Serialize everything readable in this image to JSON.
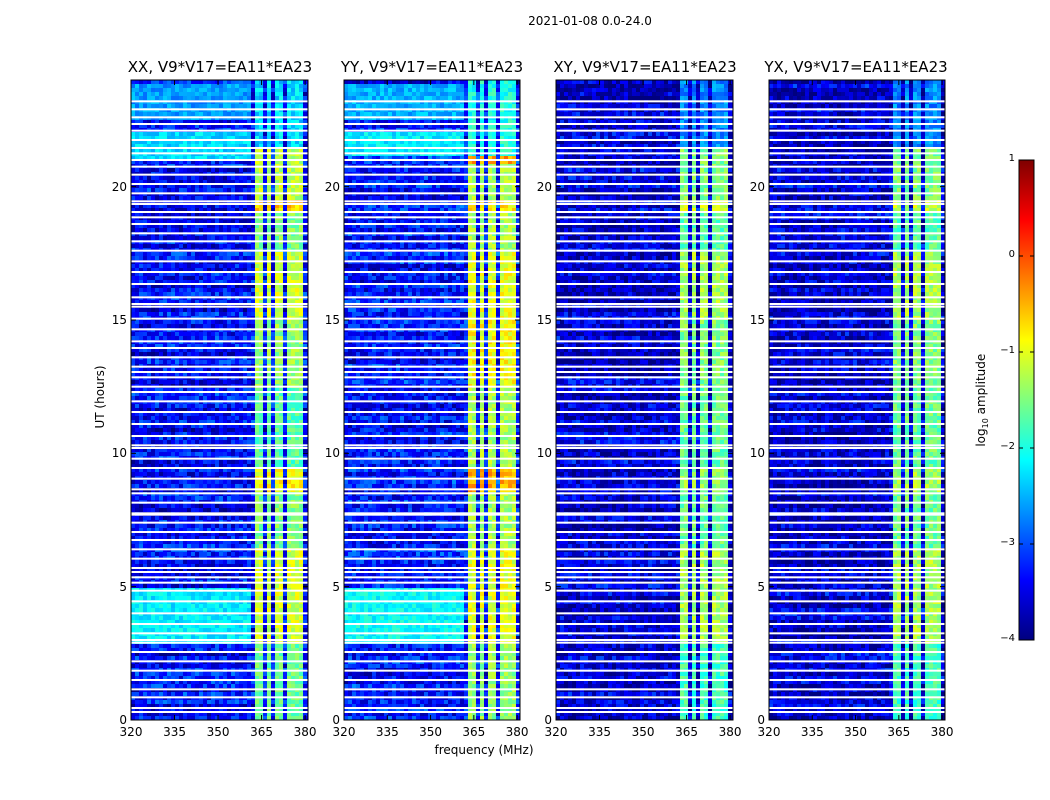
{
  "chart_data": {
    "type": "heatmap",
    "suptitle": "2021-01-08 0.0-24.0",
    "xlabel": "frequency (MHz)",
    "ylabel": "UT (hours)",
    "xlim": [
      320,
      381
    ],
    "ylim": [
      0,
      24
    ],
    "xticks": [
      "320",
      "335",
      "350",
      "365",
      "380"
    ],
    "yticks": [
      "0",
      "5",
      "10",
      "15",
      "20"
    ],
    "colorbar": {
      "label_prefix": "log",
      "label_sub": "10",
      "label_suffix": " amplitude",
      "range": [
        -4,
        1
      ],
      "ticks": [
        "1",
        "0",
        "−1",
        "−2",
        "−3",
        "−4"
      ],
      "colormap": "jet",
      "colors": [
        "#00007f",
        "#0000ff",
        "#007fff",
        "#00ffff",
        "#7fff7f",
        "#ffff00",
        "#ff7f00",
        "#ff0000",
        "#7f0000"
      ]
    },
    "flagged_hours": [
      0.3,
      0.45,
      0.85,
      1.15,
      1.5,
      1.85,
      2.2,
      2.55,
      2.9,
      3.0,
      3.25,
      3.6,
      4.0,
      4.45,
      4.85,
      5.15,
      5.35,
      5.55,
      5.7,
      6.05,
      6.4,
      6.75,
      7.05,
      7.4,
      7.7,
      7.75,
      8.15,
      8.5,
      8.65,
      9.05,
      9.45,
      9.8,
      10.2,
      10.3,
      10.65,
      11.1,
      11.55,
      11.95,
      12.3,
      12.5,
      12.85,
      13.05,
      13.25,
      13.6,
      13.95,
      14.2,
      14.65,
      15.05,
      15.5,
      15.6,
      15.85,
      16.35,
      16.8,
      17.2,
      17.6,
      17.95,
      18.25,
      18.6,
      18.85,
      19.05,
      19.35,
      19.45,
      19.75,
      20.1,
      20.45,
      20.75,
      21.0,
      21.25,
      21.45,
      21.75,
      22.1,
      22.35,
      22.6,
      22.9,
      23.2
    ],
    "rfi_band_mhz": [
      [
        362.5,
        365.5
      ],
      [
        366.5,
        369.0
      ],
      [
        370.0,
        373.0
      ],
      [
        374.0,
        376.5
      ],
      [
        377.5,
        380.0
      ]
    ],
    "panels": [
      {
        "title": "XX, V9*V17=EA11*EA23",
        "median_log_amp": -3.4,
        "rfi_log_amp": [
          [
            0,
            2.8,
            -1.6
          ],
          [
            2.8,
            6.5,
            -1.1
          ],
          [
            6.5,
            8.5,
            -1.5
          ],
          [
            8.5,
            9.5,
            -0.9
          ],
          [
            9.5,
            12.5,
            -1.7
          ],
          [
            12.5,
            15,
            -1.4
          ],
          [
            15,
            17.5,
            -1.1
          ],
          [
            17.5,
            19,
            -1.5
          ],
          [
            19,
            19.5,
            -0.6
          ],
          [
            19.5,
            21.5,
            -1.2
          ],
          [
            21.5,
            24,
            -2.3
          ]
        ],
        "broadband_log_amp": [
          [
            2.8,
            5,
            -2.2
          ],
          [
            21,
            22,
            -2.3
          ],
          [
            22.5,
            23.8,
            -2.6
          ]
        ]
      },
      {
        "title": "YY, V9*V17=EA11*EA23",
        "median_log_amp": -3.3,
        "rfi_log_amp": [
          [
            0,
            2.8,
            -1.4
          ],
          [
            2.8,
            6.5,
            -1.0
          ],
          [
            6.5,
            8.5,
            -1.3
          ],
          [
            8.5,
            9.5,
            -0.5
          ],
          [
            9.5,
            12.5,
            -1.3
          ],
          [
            12.5,
            15,
            -0.9
          ],
          [
            15,
            17.5,
            -1.0
          ],
          [
            17.5,
            19,
            -1.3
          ],
          [
            19,
            19.5,
            -0.8
          ],
          [
            19.5,
            20.8,
            -1.3
          ],
          [
            20.8,
            21.2,
            -0.4
          ],
          [
            21.2,
            24,
            -2.0
          ]
        ],
        "broadband_log_amp": [
          [
            2.8,
            5,
            -2.1
          ],
          [
            21.2,
            22,
            -2.2
          ],
          [
            22.5,
            23.8,
            -2.5
          ]
        ]
      },
      {
        "title": "XY, V9*V17=EA11*EA23",
        "median_log_amp": -3.6,
        "rfi_log_amp": [
          [
            0,
            2.8,
            -1.8
          ],
          [
            2.8,
            6.5,
            -1.3
          ],
          [
            6.5,
            8.5,
            -1.6
          ],
          [
            8.5,
            9.5,
            -1.4
          ],
          [
            9.5,
            12.5,
            -1.6
          ],
          [
            12.5,
            15,
            -1.5
          ],
          [
            15,
            17.5,
            -1.3
          ],
          [
            17.5,
            19,
            -1.7
          ],
          [
            19,
            19.5,
            -1.1
          ],
          [
            19.5,
            21.5,
            -1.5
          ],
          [
            21.5,
            24,
            -2.7
          ]
        ],
        "broadband_log_amp": []
      },
      {
        "title": "YX, V9*V17=EA11*EA23",
        "median_log_amp": -3.6,
        "rfi_log_amp": [
          [
            0,
            2.8,
            -1.8
          ],
          [
            2.8,
            6.5,
            -1.3
          ],
          [
            6.5,
            8.5,
            -1.6
          ],
          [
            8.5,
            9.5,
            -1.3
          ],
          [
            9.5,
            12.5,
            -1.6
          ],
          [
            12.5,
            15,
            -1.5
          ],
          [
            15,
            17.5,
            -1.3
          ],
          [
            17.5,
            19,
            -1.7
          ],
          [
            19,
            19.5,
            -1.1
          ],
          [
            19.5,
            21.5,
            -1.5
          ],
          [
            21.5,
            24,
            -2.7
          ]
        ],
        "broadband_log_amp": []
      }
    ]
  }
}
